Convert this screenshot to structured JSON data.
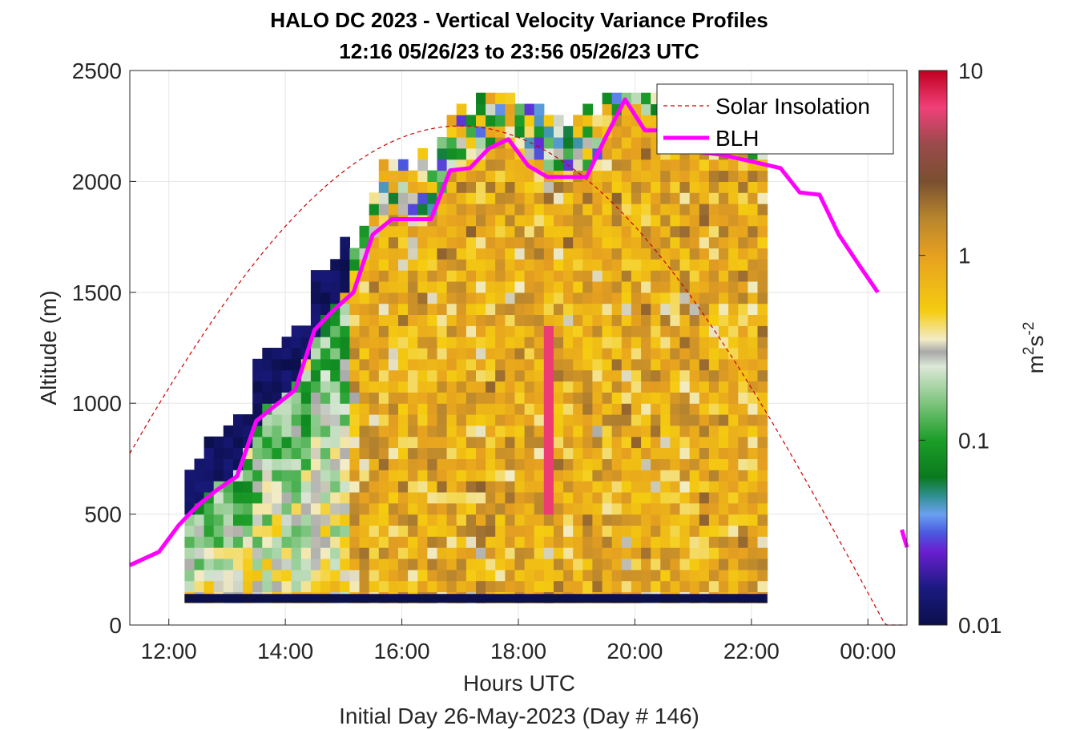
{
  "chart_data": {
    "type": "heatmap",
    "title": "HALO DC 2023 - Vertical Velocity Variance Profiles",
    "subtitle": "12:16 05/26/23 to 23:56 05/26/23  UTC",
    "xlabel": "Hours UTC",
    "xlabel2": "Initial Day 26-May-2023 (Day # 146)",
    "ylabel": "Altitude (m)",
    "x_ticks": [
      "12:00",
      "14:00",
      "16:00",
      "18:00",
      "20:00",
      "22:00",
      "00:00"
    ],
    "x_tick_hours": [
      12,
      14,
      16,
      18,
      20,
      22,
      24
    ],
    "y_ticks": [
      "0",
      "500",
      "1000",
      "1500",
      "2000",
      "2500"
    ],
    "y_tick_values": [
      0,
      500,
      1000,
      1500,
      2000,
      2500
    ],
    "xlim_hours": [
      11.33,
      24.67
    ],
    "ylim": [
      0,
      2500
    ],
    "colorbar": {
      "label_base": "m",
      "label_sup1": "2",
      "label_mid": "s",
      "label_sup2": "-2",
      "scale": "log",
      "range": [
        0.01,
        10
      ],
      "ticks": [
        "10",
        "1",
        "0.1",
        "0.01"
      ],
      "tick_values": [
        10,
        1,
        0.1,
        0.01
      ],
      "stops": [
        {
          "v": 0.01,
          "color": "#0b0f4a"
        },
        {
          "v": 0.0158,
          "color": "#1a1a80"
        },
        {
          "v": 0.0251,
          "color": "#6a1fd0"
        },
        {
          "v": 0.0316,
          "color": "#4a5ae0"
        },
        {
          "v": 0.0398,
          "color": "#6aa0f0"
        },
        {
          "v": 0.0501,
          "color": "#2f8f8f"
        },
        {
          "v": 0.0631,
          "color": "#0a7a1e"
        },
        {
          "v": 0.1,
          "color": "#1c9e28"
        },
        {
          "v": 0.158,
          "color": "#7cc47c"
        },
        {
          "v": 0.251,
          "color": "#dde8d8"
        },
        {
          "v": 0.3,
          "color": "#a8a8a8"
        },
        {
          "v": 0.35,
          "color": "#f2ecc8"
        },
        {
          "v": 0.5,
          "color": "#f5cc10"
        },
        {
          "v": 1.0,
          "color": "#e6a020"
        },
        {
          "v": 1.58,
          "color": "#b8862e"
        },
        {
          "v": 2.51,
          "color": "#7a5030"
        },
        {
          "v": 3.98,
          "color": "#9a4a4a"
        },
        {
          "v": 6.31,
          "color": "#f0407a"
        },
        {
          "v": 10,
          "color": "#c00020"
        }
      ]
    },
    "legend": {
      "placement": "top-right",
      "entries": [
        "Solar Insolation",
        "BLH"
      ]
    },
    "series": [
      {
        "name": "BLH",
        "color": "#ff00ff",
        "x_hours": [
          11.33,
          11.83,
          12.17,
          12.5,
          12.83,
          13.17,
          13.5,
          13.83,
          14.17,
          14.5,
          14.83,
          15.17,
          15.5,
          15.83,
          16.17,
          16.5,
          16.83,
          17.17,
          17.5,
          17.83,
          18.17,
          18.5,
          18.83,
          19.17,
          19.5,
          19.83,
          20.17,
          20.5,
          20.83,
          21.17,
          21.5,
          21.83,
          22.17,
          22.5,
          22.83,
          23.17,
          23.5,
          23.83,
          24.17
        ],
        "y": [
          270,
          330,
          450,
          540,
          610,
          670,
          920,
          990,
          1060,
          1330,
          1420,
          1500,
          1760,
          1830,
          1830,
          1830,
          2050,
          2060,
          2150,
          2190,
          2070,
          2020,
          2020,
          2020,
          2200,
          2370,
          2230,
          2230,
          2150,
          2130,
          2120,
          2100,
          2080,
          2060,
          1950,
          1940,
          1760,
          1630,
          1500
        ]
      },
      {
        "name": "BLH-tail",
        "color": "#ff00ff",
        "x_hours": [
          24.58,
          24.67
        ],
        "y": [
          430,
          350
        ]
      },
      {
        "name": "Solar Insolation",
        "color": "#cc0000",
        "dashed": true,
        "peak_hour": 17.0,
        "peak_altitude": 2250,
        "zero_hour": 24.3
      }
    ],
    "heatmap": {
      "x_start_hour": 12.27,
      "x_step_hour": 0.1667,
      "y_bins_start": 100,
      "y_step": 50,
      "columns": 60,
      "ground_band_value": 0.01,
      "ground_band_altitude": [
        100,
        140
      ]
    }
  }
}
